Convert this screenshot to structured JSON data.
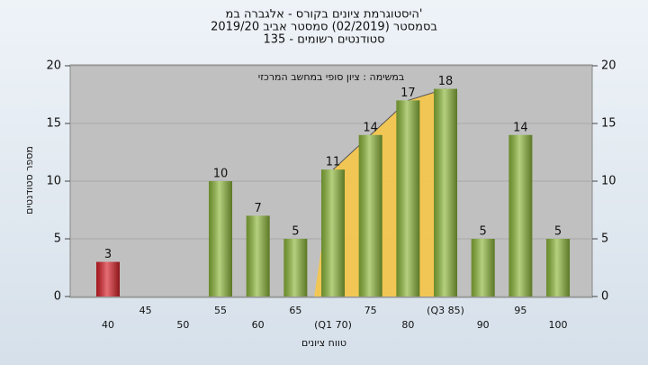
{
  "chart_data": {
    "type": "bar",
    "title": [
      "היסטוגרמת ציונים בקורס - אלגברה במ'",
      "בסמסטר  (02/2019)  סמסטר אביב 2019/20",
      "סטודנטים רשומים - 135"
    ],
    "subtitle": "במשימה : ציון סופי במחשב המרכזי",
    "x_label": "טווח ציונים",
    "y_label": "מספר סטודנטים",
    "categories": [
      "40",
      "45",
      "50",
      "55",
      "60",
      "65",
      "(Q1 70)",
      "75",
      "80",
      "(Q3 85)",
      "90",
      "95",
      "100"
    ],
    "values": [
      3,
      null,
      null,
      10,
      7,
      5,
      11,
      14,
      17,
      18,
      5,
      14,
      5
    ],
    "colors": [
      "#d82028",
      "#8db83a",
      "#8db83a",
      "#8db83a",
      "#8db83a",
      "#8db83a",
      "#8db83a",
      "#8db83a",
      "#8db83a",
      "#8db83a",
      "#8db83a",
      "#8db83a",
      "#8db83a"
    ],
    "iqr_band": {
      "from": "(Q1 70)",
      "to": "(Q3 85)",
      "color": "#f7c648"
    },
    "ylim": [
      0,
      20
    ],
    "yticks": [
      0,
      5,
      10,
      15,
      20
    ],
    "grid": true,
    "right_axis": true
  }
}
